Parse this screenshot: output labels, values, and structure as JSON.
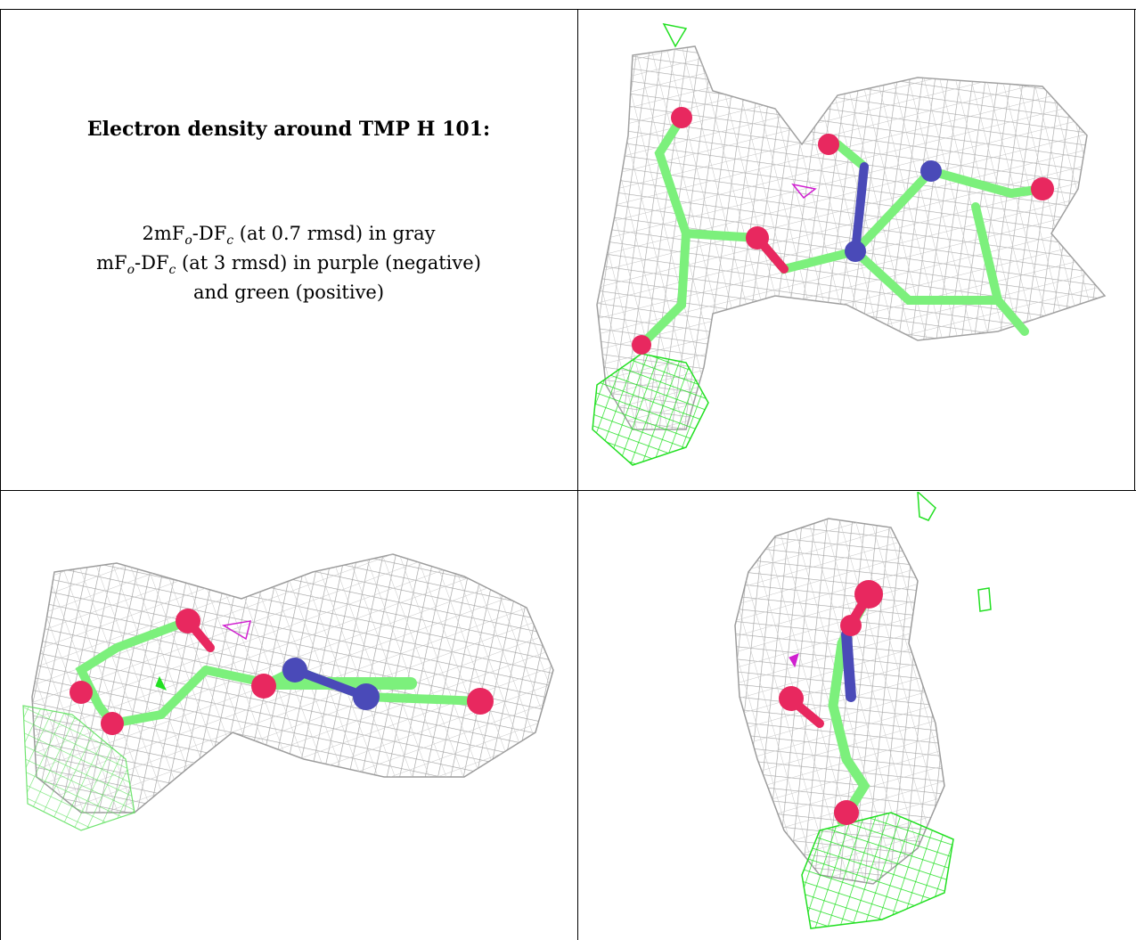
{
  "caption": {
    "title": "Electron density around TMP H 101:",
    "line1_prefix": "2mF",
    "line1_sub1": "o",
    "line1_mid": "-DF",
    "line1_sub2": "c",
    "line1_suffix": " (at 0.7 rmsd) in gray",
    "line2_prefix": "mF",
    "line2_sub1": "o",
    "line2_mid": "-DF",
    "line2_sub2": "c",
    "line2_suffix": " (at 3 rmsd) in purple (negative)",
    "line3": "and green (positive)"
  },
  "colors": {
    "mesh_gray": "#a8a8a8",
    "mesh_green": "#22e022",
    "mesh_purple": "#d020d0",
    "carbon_green": "#7cf07c",
    "oxygen": "#e8285f",
    "nitrogen": "#4a4ab8"
  },
  "panels": [
    "view-1",
    "view-2",
    "view-3"
  ]
}
